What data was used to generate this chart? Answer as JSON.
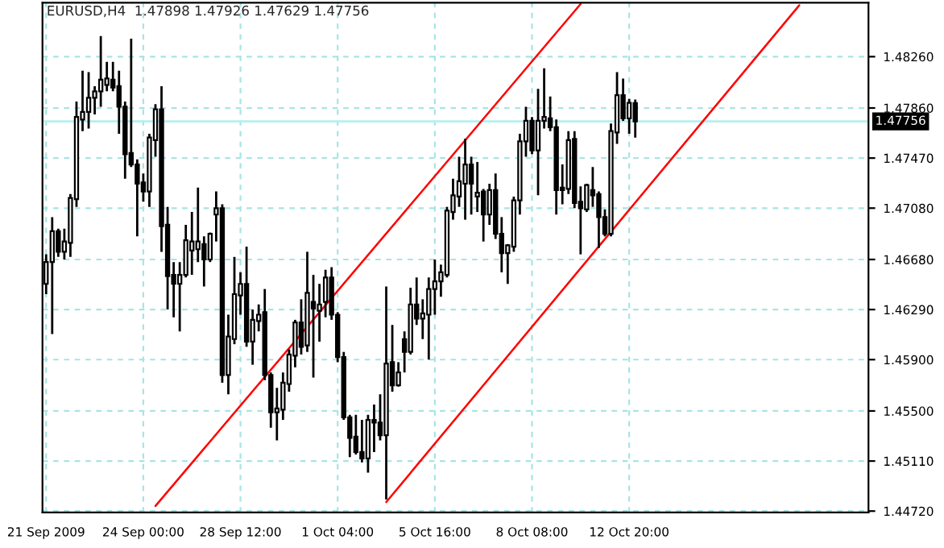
{
  "chart_data": {
    "type": "candlestick",
    "title": "EURUSD,H4  1.47898 1.47926 1.47629 1.47756",
    "grid": true,
    "categories": [
      "21 Sep 2009",
      null,
      null,
      null,
      null,
      null,
      null,
      null,
      null,
      null,
      null,
      null,
      null,
      null,
      null,
      null,
      "24 Sep 00:00",
      null,
      null,
      null,
      null,
      null,
      null,
      null,
      null,
      null,
      null,
      null,
      null,
      null,
      null,
      null,
      "28 Sep 12:00",
      null,
      null,
      null,
      null,
      null,
      null,
      null,
      null,
      null,
      null,
      null,
      null,
      null,
      null,
      null,
      "1 Oct 04:00",
      null,
      null,
      null,
      null,
      null,
      null,
      null,
      null,
      null,
      null,
      null,
      null,
      null,
      null,
      null,
      "5 Oct 16:00",
      null,
      null,
      null,
      null,
      null,
      null,
      null,
      null,
      null,
      null,
      null,
      null,
      null,
      null,
      null,
      "8 Oct 08:00",
      null,
      null,
      null,
      null,
      null,
      null,
      null,
      null,
      null,
      null,
      null,
      null,
      null,
      null,
      null,
      "12 Oct 20:00",
      null,
      null,
      null,
      null,
      null,
      null,
      null,
      null,
      null,
      null,
      null,
      null,
      null,
      null,
      null,
      null,
      null,
      null,
      null,
      null,
      null,
      null,
      null,
      null,
      null,
      null,
      null,
      null,
      null,
      null,
      null,
      null,
      null,
      null,
      null,
      null,
      null,
      null,
      null
    ],
    "ylim": [
      1.4471,
      1.4868
    ],
    "yticks": [
      {
        "value": 1.4472,
        "label": "1.44720"
      },
      {
        "value": 1.4511,
        "label": "1.45110"
      },
      {
        "value": 1.455,
        "label": "1.45500"
      },
      {
        "value": 1.459,
        "label": "1.45900"
      },
      {
        "value": 1.4629,
        "label": "1.46290"
      },
      {
        "value": 1.4668,
        "label": "1.46680"
      },
      {
        "value": 1.4708,
        "label": "1.47080"
      },
      {
        "value": 1.4747,
        "label": "1.47470"
      },
      {
        "value": 1.4786,
        "label": "1.47860"
      },
      {
        "value": 1.4826,
        "label": "1.48260"
      }
    ],
    "ref_lines": [
      {
        "axis": "y",
        "value": 1.47756,
        "label": "1.47756",
        "color": "#b4f0f0"
      }
    ],
    "series": [
      {
        "color": "#000000",
        "ohlc": [
          [
            1.4649,
            1.4672,
            1.4641,
            1.4666
          ],
          [
            1.4666,
            1.4701,
            1.461,
            1.469
          ],
          [
            1.469,
            1.4692,
            1.467,
            1.4674
          ],
          [
            1.4674,
            1.4692,
            1.4668,
            1.4682
          ],
          [
            1.4681,
            1.4719,
            1.467,
            1.4716
          ],
          [
            1.4715,
            1.4791,
            1.4709,
            1.4779
          ],
          [
            1.4777,
            1.4815,
            1.4768,
            1.4783
          ],
          [
            1.4783,
            1.4814,
            1.477,
            1.4794
          ],
          [
            1.4794,
            1.4803,
            1.4781,
            1.4799
          ],
          [
            1.4799,
            1.4842,
            1.4787,
            1.4808
          ],
          [
            1.4804,
            1.4822,
            1.4799,
            1.4809
          ],
          [
            1.4808,
            1.4822,
            1.4799,
            1.4802
          ],
          [
            1.4803,
            1.4815,
            1.4766,
            1.4787
          ],
          [
            1.4787,
            1.4791,
            1.4731,
            1.475
          ],
          [
            1.4751,
            1.484,
            1.474,
            1.4742
          ],
          [
            1.4742,
            1.4746,
            1.4686,
            1.4727
          ],
          [
            1.4728,
            1.4735,
            1.4713,
            1.4721
          ],
          [
            1.4721,
            1.4766,
            1.4709,
            1.4763
          ],
          [
            1.4761,
            1.4789,
            1.4748,
            1.4785
          ],
          [
            1.4785,
            1.4803,
            1.4674,
            1.4694
          ],
          [
            1.4695,
            1.4709,
            1.4629,
            1.4655
          ],
          [
            1.4656,
            1.4666,
            1.4623,
            1.4649
          ],
          [
            1.4649,
            1.4666,
            1.4612,
            1.4656
          ],
          [
            1.4656,
            1.4695,
            1.4654,
            1.4683
          ],
          [
            1.4675,
            1.4705,
            1.4656,
            1.4682
          ],
          [
            1.4676,
            1.4724,
            1.4666,
            1.4682
          ],
          [
            1.468,
            1.4686,
            1.4647,
            1.4668
          ],
          [
            1.4668,
            1.4689,
            1.4666,
            1.4688
          ],
          [
            1.4703,
            1.4721,
            1.4682,
            1.4708
          ],
          [
            1.4708,
            1.4711,
            1.4572,
            1.4578
          ],
          [
            1.4578,
            1.4625,
            1.4563,
            1.4608
          ],
          [
            1.4606,
            1.467,
            1.4602,
            1.4641
          ],
          [
            1.464,
            1.4658,
            1.4625,
            1.4649
          ],
          [
            1.4649,
            1.4678,
            1.46,
            1.4604
          ],
          [
            1.4604,
            1.4629,
            1.4586,
            1.4621
          ],
          [
            1.462,
            1.4633,
            1.4612,
            1.4625
          ],
          [
            1.4627,
            1.4645,
            1.4574,
            1.4578
          ],
          [
            1.4578,
            1.458,
            1.4537,
            1.4549
          ],
          [
            1.4549,
            1.4568,
            1.4527,
            1.4552
          ],
          [
            1.4551,
            1.458,
            1.4543,
            1.4572
          ],
          [
            1.4571,
            1.4598,
            1.4565,
            1.4594
          ],
          [
            1.4593,
            1.4621,
            1.4584,
            1.4619
          ],
          [
            1.4619,
            1.4637,
            1.4594,
            1.46
          ],
          [
            1.4601,
            1.4674,
            1.4596,
            1.4642
          ],
          [
            1.4635,
            1.4656,
            1.4576,
            1.463
          ],
          [
            1.4628,
            1.4649,
            1.4604,
            1.4633
          ],
          [
            1.4635,
            1.466,
            1.4623,
            1.4654
          ],
          [
            1.4654,
            1.4662,
            1.4621,
            1.4625
          ],
          [
            1.4625,
            1.4627,
            1.4588,
            1.4592
          ],
          [
            1.4592,
            1.4596,
            1.4543,
            1.4545
          ],
          [
            1.4545,
            1.4547,
            1.4514,
            1.4529
          ],
          [
            1.453,
            1.4547,
            1.4516,
            1.4518
          ],
          [
            1.4518,
            1.4543,
            1.451,
            1.4513
          ],
          [
            1.4513,
            1.4547,
            1.4502,
            1.4543
          ],
          [
            1.4543,
            1.4555,
            1.4518,
            1.4541
          ],
          [
            1.4541,
            1.4563,
            1.4527,
            1.4531
          ],
          [
            1.4531,
            1.4647,
            1.4481,
            1.4587
          ],
          [
            1.4588,
            1.4617,
            1.4565,
            1.457
          ],
          [
            1.457,
            1.4588,
            1.4569,
            1.458
          ],
          [
            1.4606,
            1.4612,
            1.458,
            1.4596
          ],
          [
            1.4596,
            1.4646,
            1.4594,
            1.4633
          ],
          [
            1.4633,
            1.4654,
            1.4617,
            1.4622
          ],
          [
            1.4622,
            1.4637,
            1.4606,
            1.4626
          ],
          [
            1.4625,
            1.4654,
            1.459,
            1.4645
          ],
          [
            1.4645,
            1.4668,
            1.4625,
            1.4651
          ],
          [
            1.4651,
            1.4664,
            1.4639,
            1.4658
          ],
          [
            1.4656,
            1.4709,
            1.4654,
            1.4706
          ],
          [
            1.4705,
            1.4731,
            1.4699,
            1.4718
          ],
          [
            1.4717,
            1.4748,
            1.4709,
            1.4729
          ],
          [
            1.4727,
            1.4762,
            1.4699,
            1.4742
          ],
          [
            1.4742,
            1.4748,
            1.4703,
            1.4727
          ],
          [
            1.4717,
            1.4744,
            1.4705,
            1.472
          ],
          [
            1.4721,
            1.4723,
            1.4682,
            1.4703
          ],
          [
            1.4703,
            1.4727,
            1.4695,
            1.4722
          ],
          [
            1.4722,
            1.4735,
            1.4684,
            1.4688
          ],
          [
            1.4688,
            1.4701,
            1.4658,
            1.4673
          ],
          [
            1.4673,
            1.468,
            1.4649,
            1.4679
          ],
          [
            1.4678,
            1.4717,
            1.4674,
            1.4714
          ],
          [
            1.4714,
            1.4766,
            1.4703,
            1.476
          ],
          [
            1.476,
            1.4787,
            1.4748,
            1.4776
          ],
          [
            1.4776,
            1.4779,
            1.475,
            1.4753
          ],
          [
            1.4753,
            1.4801,
            1.4718,
            1.4776
          ],
          [
            1.4776,
            1.4817,
            1.477,
            1.4779
          ],
          [
            1.4778,
            1.4795,
            1.4768,
            1.4771
          ],
          [
            1.4771,
            1.4777,
            1.4703,
            1.4722
          ],
          [
            1.4724,
            1.4742,
            1.4711,
            1.4722
          ],
          [
            1.4723,
            1.4768,
            1.4719,
            1.4761
          ],
          [
            1.4762,
            1.4768,
            1.4708,
            1.4712
          ],
          [
            1.4713,
            1.4725,
            1.4672,
            1.4708
          ],
          [
            1.4707,
            1.4727,
            1.4705,
            1.4726
          ],
          [
            1.4722,
            1.474,
            1.4709,
            1.4718
          ],
          [
            1.4719,
            1.4721,
            1.4677,
            1.4701
          ],
          [
            1.4701,
            1.4707,
            1.4686,
            1.4688
          ],
          [
            1.4688,
            1.4774,
            1.4686,
            1.4768
          ],
          [
            1.4767,
            1.4814,
            1.4758,
            1.4796
          ],
          [
            1.4796,
            1.4809,
            1.4776,
            1.4778
          ],
          [
            1.4778,
            1.4793,
            1.4766,
            1.479
          ],
          [
            1.47898,
            1.47926,
            1.47629,
            1.47756
          ],
          null,
          null,
          null,
          null,
          null,
          null,
          null,
          null,
          null,
          null,
          null,
          null,
          null,
          null,
          null,
          null,
          null,
          null,
          null,
          null,
          null,
          null,
          null,
          null,
          null,
          null,
          null,
          null,
          null,
          null,
          null,
          null,
          null,
          null,
          null,
          null,
          null,
          null
        ]
      },
      {
        "type": "line",
        "color": "#ff0000",
        "values": [
          null,
          null,
          null,
          null,
          null,
          null,
          null,
          null,
          null,
          null,
          null,
          null,
          null,
          null,
          null,
          null,
          null,
          null,
          1.4476,
          null,
          null,
          null,
          null,
          null,
          null,
          null,
          null,
          null,
          null,
          null,
          null,
          null,
          null,
          null,
          null,
          null,
          null,
          null,
          null,
          null,
          null,
          null,
          null,
          null,
          null,
          null,
          null,
          null,
          null,
          null,
          null,
          null,
          null,
          null,
          null,
          null,
          null,
          null,
          null,
          null,
          null,
          null,
          null,
          null,
          null,
          null,
          null,
          null,
          null,
          null,
          null,
          null,
          null,
          null,
          null,
          null,
          null,
          null,
          null,
          null,
          null,
          null,
          null,
          null,
          null,
          null,
          null,
          null,
          1.4867,
          null,
          null,
          null,
          null,
          null,
          null,
          null,
          null,
          null,
          null,
          null,
          null,
          null,
          null,
          null,
          null,
          null,
          null,
          null,
          null,
          null,
          null,
          null,
          null,
          null,
          null,
          null,
          null,
          null,
          null,
          null,
          null,
          null,
          null,
          null,
          null,
          null,
          null,
          null,
          null,
          null,
          null,
          null,
          null,
          null,
          null,
          null
        ]
      },
      {
        "type": "line",
        "color": "#ff0000",
        "values": [
          null,
          null,
          null,
          null,
          null,
          null,
          null,
          null,
          null,
          null,
          null,
          null,
          null,
          null,
          null,
          null,
          null,
          null,
          null,
          null,
          null,
          null,
          null,
          null,
          null,
          null,
          null,
          null,
          null,
          null,
          null,
          null,
          null,
          null,
          null,
          null,
          null,
          null,
          null,
          null,
          null,
          null,
          null,
          null,
          null,
          null,
          null,
          null,
          null,
          null,
          null,
          null,
          null,
          null,
          null,
          null,
          1.4479,
          null,
          null,
          null,
          null,
          null,
          null,
          null,
          null,
          null,
          null,
          null,
          null,
          null,
          null,
          null,
          null,
          null,
          null,
          null,
          null,
          null,
          null,
          null,
          null,
          null,
          null,
          null,
          null,
          null,
          null,
          null,
          null,
          null,
          null,
          null,
          null,
          null,
          null,
          null,
          null,
          null,
          null,
          null,
          null,
          null,
          null,
          null,
          null,
          null,
          null,
          null,
          null,
          null,
          null,
          null,
          null,
          null,
          null,
          null,
          null,
          null,
          null,
          null,
          null,
          null,
          null,
          null,
          1.4866,
          null,
          null,
          null,
          null,
          null,
          null,
          null,
          null,
          null,
          null,
          null
        ]
      }
    ]
  }
}
